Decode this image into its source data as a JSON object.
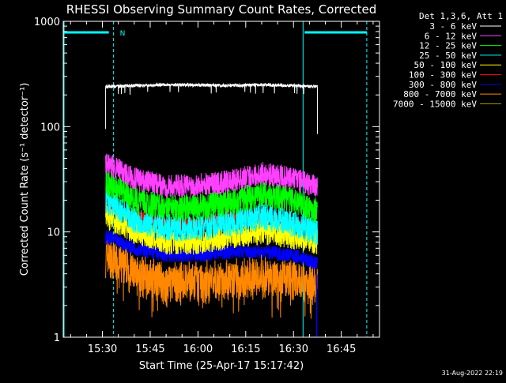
{
  "chart_data": {
    "type": "line",
    "title": "RHESSI Observing Summary Count Rates, Corrected",
    "xlabel": "Start Time (25-Apr-17 15:17:42)",
    "ylabel": "Corrected Count Rate (s⁻¹ detector⁻¹)",
    "y_scale": "log",
    "ylim": [
      1,
      1000
    ],
    "xlim": [
      "15:17:42",
      "16:57:00"
    ],
    "y_ticks": [
      "1",
      "10",
      "100",
      "1000"
    ],
    "x_ticks": [
      "15:30",
      "15:45",
      "16:00",
      "16:15",
      "16:30",
      "16:45"
    ],
    "grid": false,
    "legend_position": "top-right",
    "legend_title": "Det 1,3,6, Att 1",
    "data_start": "15:31:00",
    "data_end": "16:37:30",
    "series": [
      {
        "name": "3 - 6 keV",
        "color": "#ffffff",
        "x": [
          "15:31",
          "15:40",
          "15:50",
          "16:00",
          "16:10",
          "16:20",
          "16:30",
          "16:37"
        ],
        "y": [
          240,
          245,
          250,
          248,
          245,
          250,
          245,
          240
        ]
      },
      {
        "name": "6 - 12 keV",
        "color": "#ff40ff",
        "x": [
          "15:31",
          "15:40",
          "15:50",
          "16:00",
          "16:10",
          "16:20",
          "16:30",
          "16:37"
        ],
        "y": [
          45,
          32,
          27,
          28,
          30,
          36,
          32,
          27
        ]
      },
      {
        "name": "12 - 25 keV",
        "color": "#00ff00",
        "x": [
          "15:31",
          "15:40",
          "15:50",
          "16:00",
          "16:10",
          "16:20",
          "16:30",
          "16:37"
        ],
        "y": [
          30,
          20,
          17,
          17,
          19,
          23,
          20,
          16
        ]
      },
      {
        "name": "25 - 50 keV",
        "color": "#00ffff",
        "x": [
          "15:31",
          "15:40",
          "15:50",
          "16:00",
          "16:10",
          "16:20",
          "16:30",
          "16:37"
        ],
        "y": [
          20,
          13,
          11,
          11,
          12,
          14,
          12,
          10
        ]
      },
      {
        "name": "50 - 100 keV",
        "color": "#ffff00",
        "x": [
          "15:31",
          "15:40",
          "15:50",
          "16:00",
          "16:10",
          "16:20",
          "16:30",
          "16:37"
        ],
        "y": [
          14,
          10,
          8,
          8,
          9,
          10,
          9,
          8
        ]
      },
      {
        "name": "100 - 300 keV",
        "color": "#ff0000",
        "x": [
          "15:31",
          "15:40",
          "15:50",
          "16:00",
          "16:10",
          "16:20",
          "16:30",
          "16:37"
        ],
        "y": [
          17,
          14,
          12,
          12,
          14,
          14,
          12,
          10
        ]
      },
      {
        "name": "300 - 800 keV",
        "color": "#0000ff",
        "x": [
          "15:31",
          "15:40",
          "15:50",
          "16:00",
          "16:10",
          "16:20",
          "16:30",
          "16:37"
        ],
        "y": [
          9,
          7,
          6,
          6,
          6.5,
          6.5,
          6,
          5
        ]
      },
      {
        "name": "800 - 7000 keV",
        "color": "#ff8800",
        "x": [
          "15:31",
          "15:40",
          "15:50",
          "16:00",
          "16:10",
          "16:20",
          "16:30",
          "16:37"
        ],
        "y": [
          6,
          4,
          3.3,
          3.3,
          3.5,
          3.8,
          3.5,
          3.3
        ]
      },
      {
        "name": "7000 - 15000 keV",
        "color": "#a0a000",
        "x": [],
        "y": []
      }
    ],
    "markers": [
      {
        "label": "N",
        "color": "#00ffff"
      }
    ]
  },
  "footer": {
    "date": "31-Aug-2022 22:19"
  }
}
